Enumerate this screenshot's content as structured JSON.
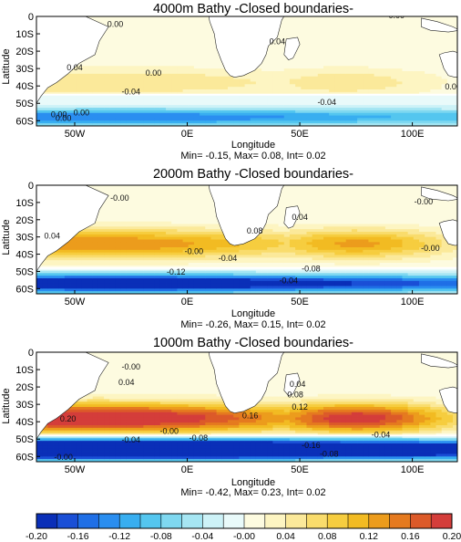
{
  "chart_data": [
    {
      "type": "heatmap",
      "title": "4000m Bathy -Closed boundaries-",
      "ylabel": "Latitude",
      "xlabel": "Longitude",
      "stats": "Min= -0.15, Max= 0.08, Int= 0.02",
      "xticks": [
        "50W",
        "0E",
        "50E",
        "100E"
      ],
      "xtick_values": [
        -50,
        0,
        50,
        100
      ],
      "yticks": [
        "0",
        "10S",
        "20S",
        "30S",
        "40S",
        "50S",
        "60S"
      ],
      "yrange": [
        0,
        -63
      ],
      "xrange": [
        -67,
        120
      ],
      "contour_labels": [
        "0.00",
        "0.00",
        "0.04",
        "0.04",
        "0.00",
        "0.00",
        "-0.04",
        "-0.04",
        "0.00",
        "0.00",
        "0.00"
      ],
      "fields": {
        "subtropical_gyre": {
          "value": 0.06,
          "lat": -38,
          "lon_east": 70
        },
        "southern_band": {
          "value": -0.14,
          "lat": -58,
          "lon_east": 60
        },
        "southern_edge": -45
      }
    },
    {
      "type": "heatmap",
      "title": "2000m Bathy -Closed boundaries-",
      "ylabel": "Latitude",
      "xlabel": "Longitude",
      "stats": "Min= -0.26, Max= 0.15, Int= 0.02",
      "xticks": [
        "50W",
        "0E",
        "50E",
        "100E"
      ],
      "xtick_values": [
        -50,
        0,
        50,
        100
      ],
      "yticks": [
        "0",
        "10S",
        "20S",
        "30S",
        "40S",
        "50S",
        "60S"
      ],
      "yrange": [
        0,
        -63
      ],
      "xrange": [
        -67,
        120
      ],
      "contour_labels": [
        "-0.00",
        "0.04",
        "0.08",
        "0.04",
        "-0.00",
        "-0.04",
        "-0.12",
        "-0.08",
        "-0.04",
        "-0.00",
        "-0.00"
      ],
      "fields": {
        "subtropical_gyre": {
          "value": 0.14,
          "lat": -34,
          "lon_east": 75
        },
        "southern_band": {
          "value": -0.24,
          "lat": -57,
          "lon_east": 70
        },
        "southern_edge": -48
      }
    },
    {
      "type": "heatmap",
      "title": "1000m Bathy -Closed boundaries-",
      "ylabel": "Latitude",
      "xlabel": "Longitude",
      "stats": "Min= -0.42, Max= 0.23, Int= 0.02",
      "xticks": [
        "50W",
        "0E",
        "50E",
        "100E"
      ],
      "xtick_values": [
        -50,
        0,
        50,
        100
      ],
      "yticks": [
        "0",
        "10S",
        "20S",
        "30S",
        "40S",
        "50S",
        "60S"
      ],
      "yrange": [
        0,
        -63
      ],
      "xrange": [
        -67,
        120
      ],
      "contour_labels": [
        "0.04",
        "-0.00",
        "0.04",
        "0.08",
        "0.12",
        "0.16",
        "0.20",
        "-0.00",
        "-0.04",
        "-0.08",
        "-0.04",
        "-0.16",
        "-0.08",
        "-0.00"
      ],
      "fields": {
        "subtropical_gyre": {
          "value": 0.22,
          "lat": -38,
          "lon_east": 75
        },
        "southern_band": {
          "value": -0.4,
          "lat": -56,
          "lon_east": 70
        },
        "southern_edge": -48
      }
    }
  ],
  "colorbar": {
    "ticks": [
      "-0.20",
      "-0.16",
      "-0.12",
      "-0.08",
      "-0.04",
      "-0.00",
      "0.04",
      "0.08",
      "0.12",
      "0.16",
      "0.20"
    ],
    "colors": [
      "#0a2fb8",
      "#1a4fd6",
      "#1f6fe6",
      "#2a8ef0",
      "#38aef0",
      "#54c6ef",
      "#7fd8f0",
      "#a6e6f3",
      "#cdf2f7",
      "#e9fafa",
      "#fdfbe0",
      "#fdf5c2",
      "#fbe99a",
      "#f9dc6c",
      "#f6cd3f",
      "#f2bb22",
      "#ec9c1c",
      "#e57a1f",
      "#dc5a29",
      "#d43d3a"
    ]
  },
  "colors": {
    "land": "#ffffff",
    "coast": "#222222",
    "contour": "#111111",
    "neutral": "#eefbfc"
  }
}
